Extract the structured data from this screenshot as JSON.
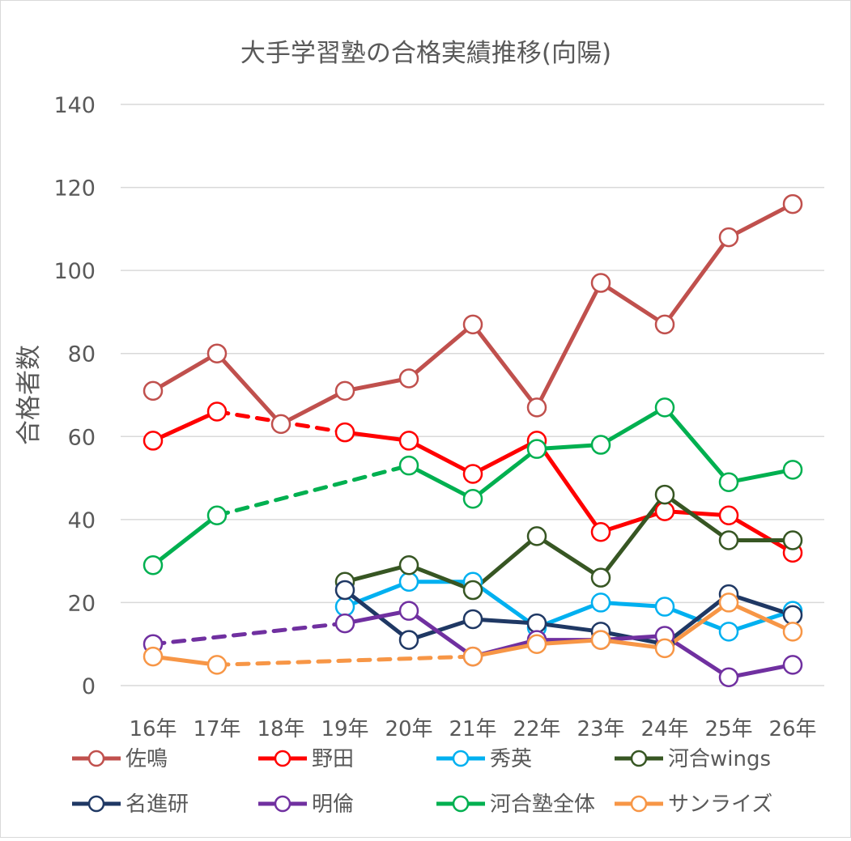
{
  "chart_data": {
    "type": "line",
    "title": "大手学習塾の合格実績推移(向陽)",
    "xlabel": "",
    "ylabel": "合格者数",
    "ylim": [
      0,
      140
    ],
    "yticks": [
      0,
      20,
      40,
      60,
      80,
      100,
      120,
      140
    ],
    "categories": [
      "16年",
      "17年",
      "18年",
      "19年",
      "20年",
      "21年",
      "22年",
      "23年",
      "24年",
      "25年",
      "26年"
    ],
    "grid": true,
    "legend_position": "bottom",
    "series": [
      {
        "name": "佐鳴",
        "color": "#c0504d",
        "values": [
          71,
          80,
          63,
          71,
          74,
          87,
          67,
          97,
          87,
          108,
          116
        ],
        "dashed_segments": []
      },
      {
        "name": "野田",
        "color": "#ff0000",
        "values": [
          59,
          66,
          null,
          61,
          59,
          51,
          59,
          37,
          42,
          41,
          32
        ],
        "dashed_segments": [
          [
            1,
            3
          ]
        ]
      },
      {
        "name": "秀英",
        "color": "#00b0f0",
        "values": [
          null,
          null,
          null,
          19,
          25,
          25,
          14,
          20,
          19,
          13,
          18
        ],
        "dashed_segments": []
      },
      {
        "name": "河合wings",
        "color": "#375623",
        "values": [
          null,
          null,
          null,
          25,
          29,
          23,
          36,
          26,
          46,
          35,
          35
        ],
        "dashed_segments": []
      },
      {
        "name": "名進研",
        "color": "#1f3864",
        "values": [
          null,
          null,
          null,
          23,
          11,
          16,
          15,
          13,
          10,
          22,
          17
        ],
        "dashed_segments": []
      },
      {
        "name": "明倫",
        "color": "#7030a0",
        "values": [
          10,
          null,
          null,
          15,
          18,
          7,
          11,
          11,
          12,
          2,
          5
        ],
        "dashed_segments": [
          [
            0,
            3
          ]
        ]
      },
      {
        "name": "河合塾全体",
        "color": "#00b050",
        "values": [
          29,
          41,
          null,
          null,
          53,
          45,
          57,
          58,
          67,
          49,
          52
        ],
        "dashed_segments": [
          [
            1,
            4
          ]
        ]
      },
      {
        "name": "サンライズ",
        "color": "#f79646",
        "values": [
          7,
          5,
          null,
          null,
          null,
          7,
          10,
          11,
          9,
          20,
          13
        ],
        "dashed_segments": [
          [
            1,
            5
          ]
        ]
      }
    ]
  }
}
